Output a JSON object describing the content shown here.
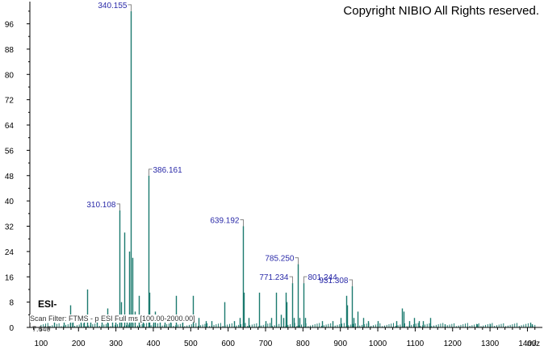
{
  "copyright": "Copyright NIBIO All Rights reserved.",
  "ionization_mode": "ESI-",
  "scan_filter": "Scan Filter: FTMS - p ESI Full ms [100.00-2000.00]",
  "retention_time": "7.640",
  "colors": {
    "peak": "#1b7a6e",
    "label": "#2a2aa8",
    "axis": "#000000",
    "leader": "#888888"
  },
  "chart_data": {
    "type": "bar",
    "xlabel": "m/z",
    "ylabel": "",
    "title": "",
    "xlim": [
      70,
      1440
    ],
    "ylim": [
      0,
      102
    ],
    "x_ticks": [
      100,
      200,
      300,
      400,
      500,
      600,
      700,
      800,
      900,
      1000,
      1100,
      1200,
      1300,
      1400
    ],
    "y_ticks": [
      0,
      8,
      16,
      24,
      32,
      40,
      48,
      56,
      64,
      72,
      80,
      88,
      96
    ],
    "labeled_peaks": [
      {
        "label": "340.155",
        "mz": 340.155,
        "intensity": 100
      },
      {
        "label": "386.161",
        "mz": 386.161,
        "intensity": 48
      },
      {
        "label": "310.108",
        "mz": 310.108,
        "intensity": 37
      },
      {
        "label": "639.192",
        "mz": 639.192,
        "intensity": 32
      },
      {
        "label": "785.250",
        "mz": 785.25,
        "intensity": 20
      },
      {
        "label": "771.234",
        "mz": 771.234,
        "intensity": 14
      },
      {
        "label": "801.244",
        "mz": 801.244,
        "intensity": 14
      },
      {
        "label": "931.308",
        "mz": 931.308,
        "intensity": 13
      }
    ],
    "peaks": [
      [
        135,
        2
      ],
      [
        160,
        3
      ],
      [
        177,
        7
      ],
      [
        185,
        2
      ],
      [
        205,
        3
      ],
      [
        215,
        2
      ],
      [
        223,
        12
      ],
      [
        232,
        3
      ],
      [
        250,
        3
      ],
      [
        262,
        4
      ],
      [
        278,
        6
      ],
      [
        290,
        3
      ],
      [
        298,
        4
      ],
      [
        310.108,
        37
      ],
      [
        314,
        8
      ],
      [
        323,
        30
      ],
      [
        328,
        4
      ],
      [
        336,
        24
      ],
      [
        340.155,
        100
      ],
      [
        344,
        22
      ],
      [
        350,
        5
      ],
      [
        362,
        10
      ],
      [
        372,
        3
      ],
      [
        386.161,
        48
      ],
      [
        389,
        11
      ],
      [
        400,
        4
      ],
      [
        405,
        5
      ],
      [
        418,
        3
      ],
      [
        430,
        4
      ],
      [
        445,
        3
      ],
      [
        460,
        10
      ],
      [
        478,
        3
      ],
      [
        505,
        10
      ],
      [
        520,
        3
      ],
      [
        540,
        2
      ],
      [
        555,
        2
      ],
      [
        590,
        8
      ],
      [
        615,
        2
      ],
      [
        630,
        3
      ],
      [
        639.192,
        32
      ],
      [
        642,
        11
      ],
      [
        655,
        3
      ],
      [
        682,
        11
      ],
      [
        700,
        2
      ],
      [
        715,
        3
      ],
      [
        727,
        11
      ],
      [
        740,
        4
      ],
      [
        748,
        3
      ],
      [
        753,
        11
      ],
      [
        756,
        8
      ],
      [
        771.234,
        14
      ],
      [
        775,
        3
      ],
      [
        785.25,
        20
      ],
      [
        790,
        3
      ],
      [
        801.244,
        14
      ],
      [
        805,
        3
      ],
      [
        850,
        2
      ],
      [
        880,
        2
      ],
      [
        900,
        3
      ],
      [
        915,
        10
      ],
      [
        918,
        7
      ],
      [
        931.308,
        13
      ],
      [
        935,
        3
      ],
      [
        945,
        5
      ],
      [
        960,
        3
      ],
      [
        975,
        2
      ],
      [
        1000,
        2
      ],
      [
        1050,
        2
      ],
      [
        1065,
        6
      ],
      [
        1068,
        5
      ],
      [
        1085,
        2
      ],
      [
        1098,
        3
      ],
      [
        1110,
        2
      ],
      [
        1120,
        2
      ],
      [
        1140,
        3
      ],
      [
        1180,
        1
      ],
      [
        1265,
        1
      ],
      [
        1300,
        1
      ],
      [
        1408,
        1.5
      ],
      [
        1412,
        1
      ]
    ]
  }
}
